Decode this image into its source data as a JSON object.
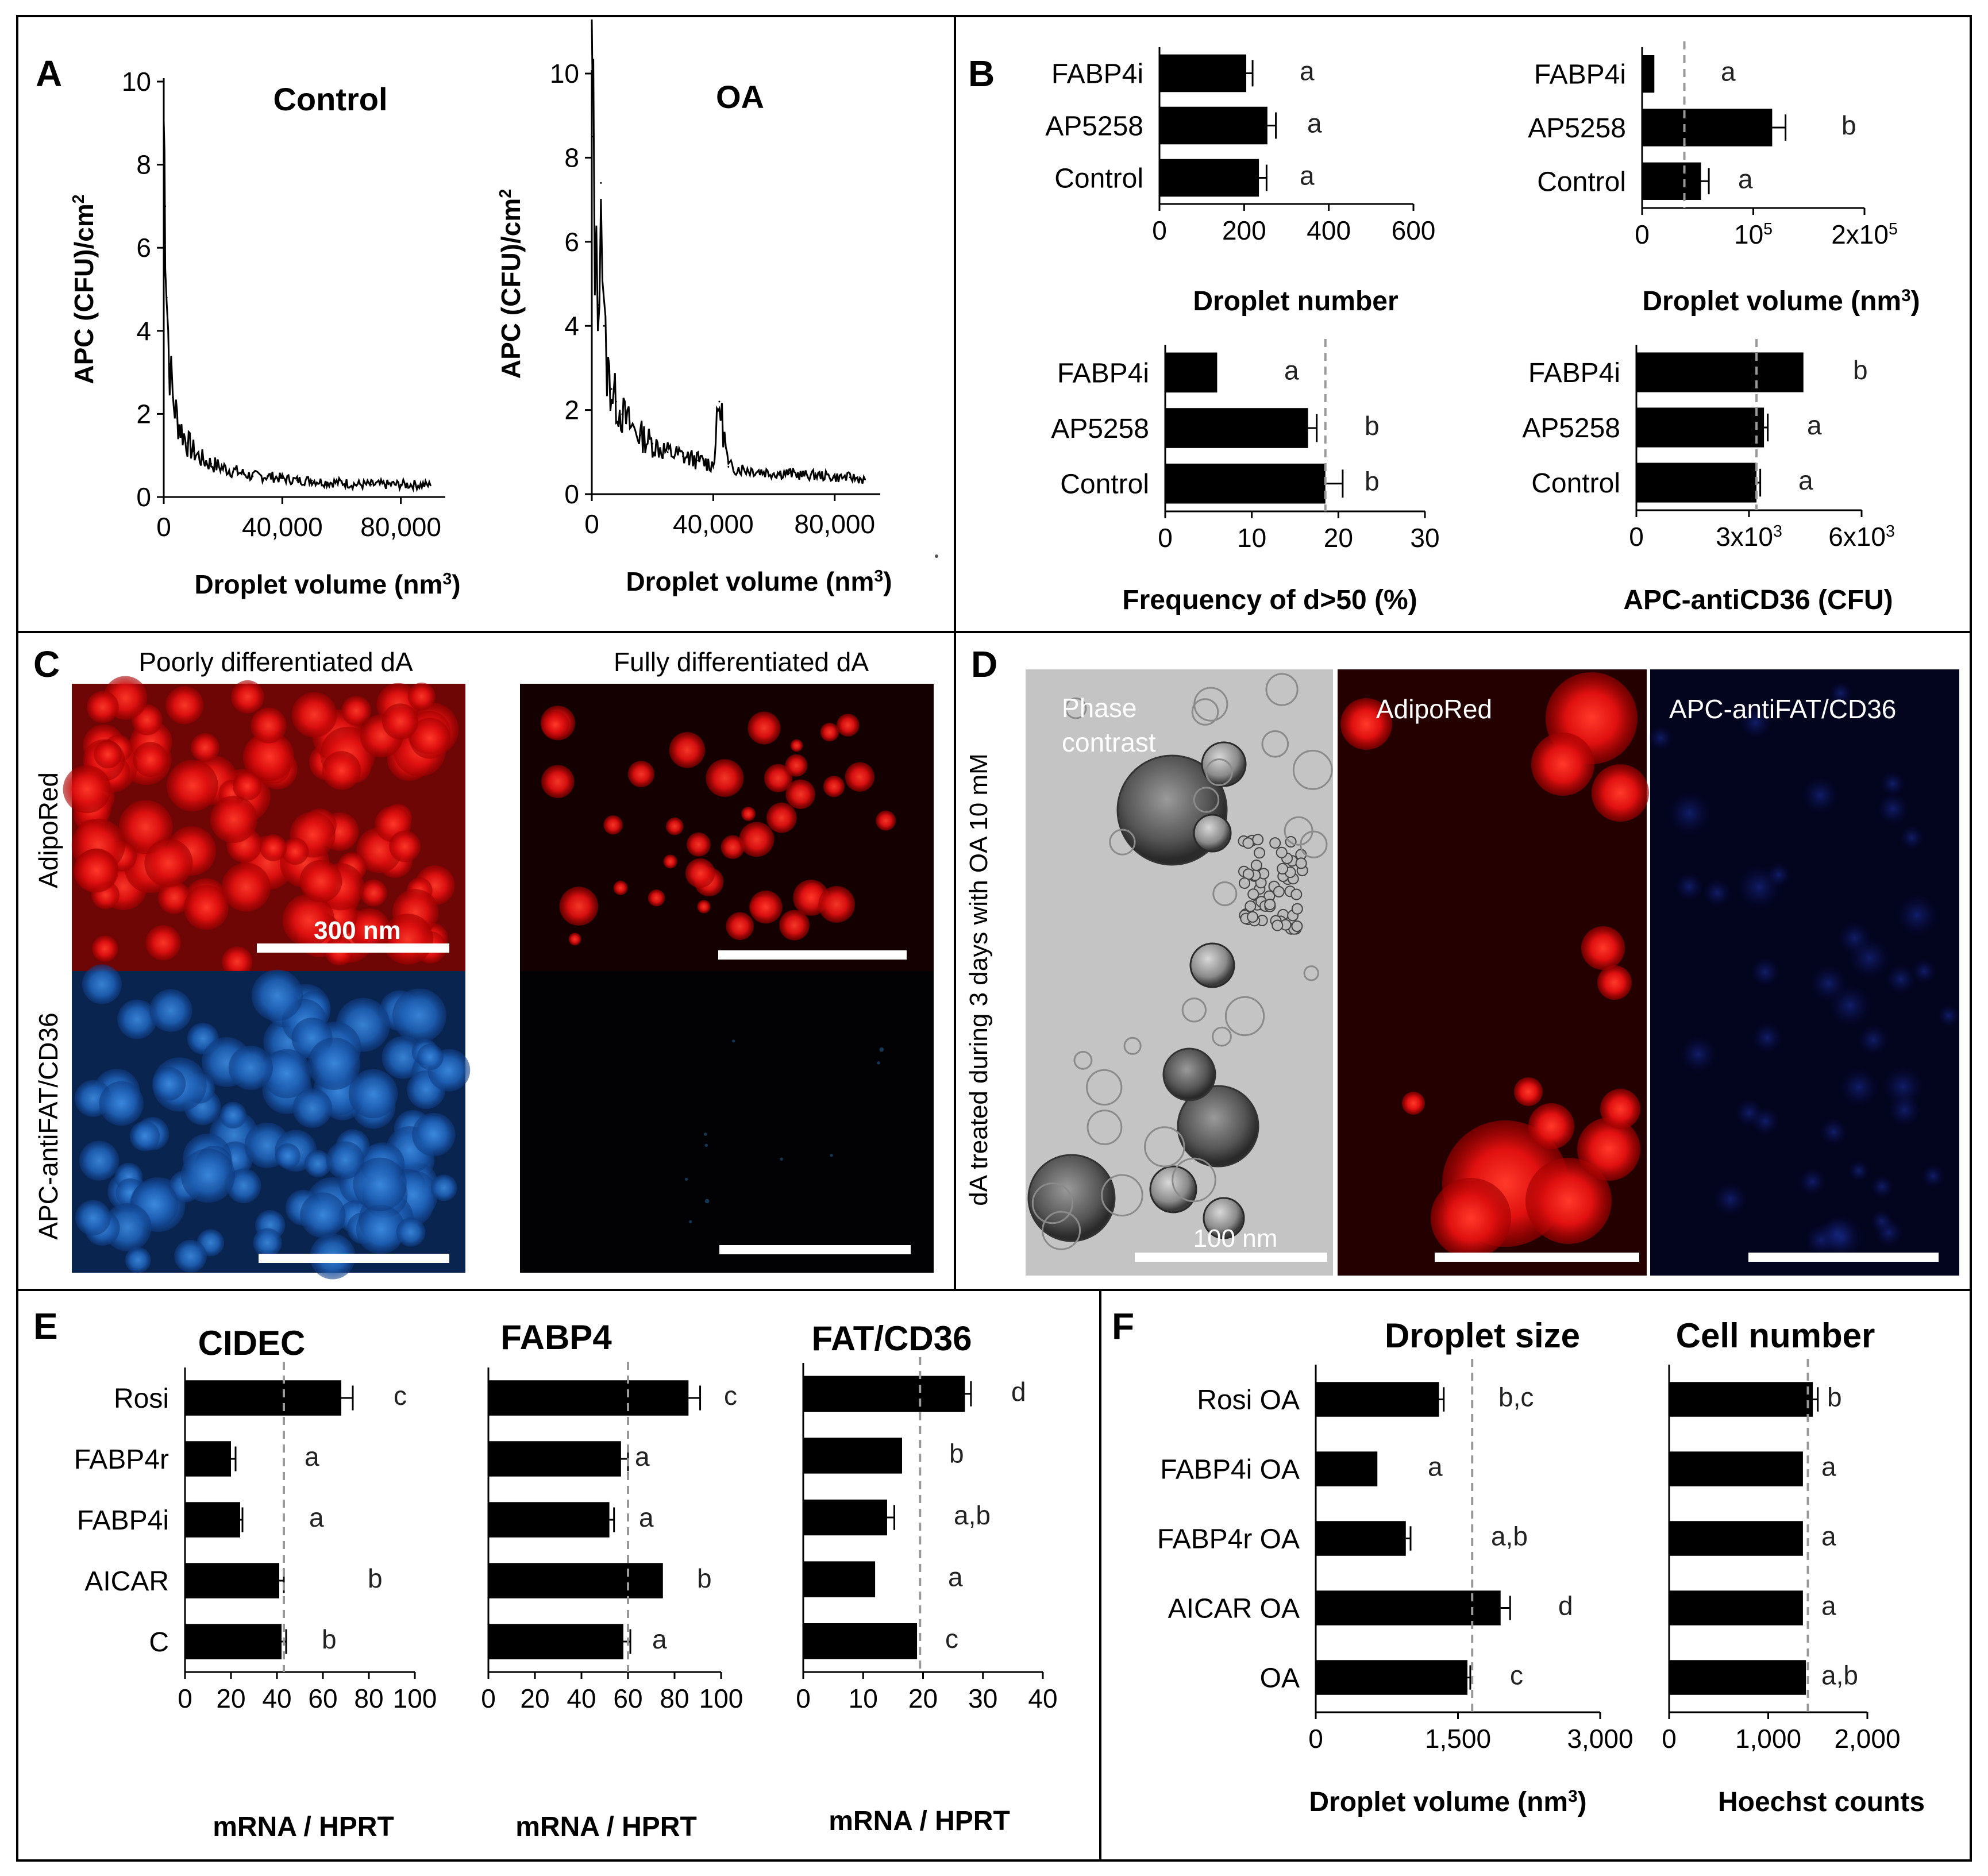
{
  "figure_labels": {
    "A": "A",
    "B": "B",
    "C": "C",
    "D": "D",
    "E": "E",
    "F": "F"
  },
  "colors": {
    "bar": "#000000",
    "dashed_line": "#9a9a9a",
    "frame": "#000000",
    "red_stain": "#d81010",
    "blue_stain": "#1e5fb4"
  },
  "panel_C": {
    "col_titles": [
      "Poorly differentiated dA",
      "Fully differentiated dA"
    ],
    "row_labels": [
      "AdipoRed",
      "APC-antiFAT/CD36"
    ],
    "scale_label": "300 nm"
  },
  "panel_D": {
    "side_label": "dA treated during 3 days with OA 10 mM",
    "image_labels": [
      "Phase\ncontrast",
      "AdipoRed",
      "APC-antiFAT/CD36"
    ],
    "scale_label": "100 nm"
  },
  "chart_data": [
    {
      "id": "A1",
      "type": "line",
      "title": "Control",
      "xlabel": "Droplet volume (nm3)",
      "ylabel": "APC (CFU)/cm2",
      "xlim": [
        0,
        95000
      ],
      "ylim": [
        0,
        10
      ],
      "xticks": [
        0,
        40000,
        80000
      ],
      "xtick_labels": [
        "0",
        "40,000",
        "80,000"
      ],
      "yticks": [
        0,
        2,
        4,
        6,
        8,
        10
      ],
      "ytick_labels": [
        "0",
        "2",
        "4",
        "6",
        "8",
        "10"
      ],
      "series": [
        {
          "x": [
            0,
            500,
            1000,
            2000,
            3000,
            4500,
            6000,
            8000,
            10000,
            13000,
            16000,
            20000,
            25000,
            30000,
            35000,
            40000,
            45000,
            50000,
            55000,
            60000,
            65000,
            70000,
            75000,
            80000,
            85000,
            90000
          ],
          "y": [
            9.1,
            7.0,
            4.8,
            3.2,
            2.4,
            1.9,
            1.6,
            1.3,
            1.1,
            0.9,
            0.8,
            0.7,
            0.6,
            0.5,
            0.5,
            0.45,
            0.4,
            0.4,
            0.35,
            0.35,
            0.3,
            0.3,
            0.3,
            0.3,
            0.3,
            0.28
          ]
        }
      ]
    },
    {
      "id": "A2",
      "type": "line",
      "title": "OA",
      "xlabel": "Droplet volume (nm3)",
      "ylabel": "APC (CFU)/cm2",
      "xlim": [
        0,
        95000
      ],
      "ylim": [
        0,
        10
      ],
      "xticks": [
        0,
        40000,
        80000
      ],
      "xtick_labels": [
        "0",
        "40,000",
        "80,000"
      ],
      "yticks": [
        0,
        2,
        4,
        6,
        8,
        10
      ],
      "ytick_labels": [
        "0",
        "2",
        "4",
        "6",
        "8",
        "10"
      ],
      "series": [
        {
          "x": [
            0,
            500,
            1000,
            2000,
            3000,
            4000,
            5000,
            6500,
            8000,
            10000,
            13000,
            16000,
            20000,
            25000,
            30000,
            35000,
            40000,
            42000,
            45000,
            50000,
            55000,
            60000,
            65000,
            70000,
            75000,
            80000,
            85000,
            90000
          ],
          "y": [
            10.0,
            8.5,
            6.0,
            4.5,
            7.4,
            4.0,
            3.0,
            2.5,
            2.2,
            1.9,
            1.6,
            1.4,
            1.2,
            1.0,
            0.9,
            0.8,
            0.7,
            2.2,
            0.65,
            0.6,
            0.55,
            0.5,
            0.5,
            0.45,
            0.45,
            0.4,
            0.4,
            0.35
          ]
        }
      ]
    },
    {
      "id": "B1",
      "type": "bar",
      "orientation": "horizontal",
      "xlabel": "Droplet number",
      "categories": [
        "FABP4i",
        "AP5258",
        "Control"
      ],
      "values": [
        205,
        255,
        235
      ],
      "errors": [
        15,
        20,
        18
      ],
      "letters": [
        "a",
        "a",
        "a"
      ],
      "xlim": [
        0,
        600
      ],
      "xticks": [
        0,
        200,
        400,
        600
      ],
      "xtick_labels": [
        "0",
        "200",
        "400",
        "600"
      ],
      "ref": null
    },
    {
      "id": "B2",
      "type": "bar",
      "orientation": "horizontal",
      "xlabel": "Droplet volume (nm3)",
      "categories": [
        "FABP4i",
        "AP5258",
        "Control"
      ],
      "values": [
        11000,
        117000,
        53000
      ],
      "errors": [
        0,
        12000,
        7000
      ],
      "letters": [
        "a",
        "b",
        "a"
      ],
      "xlim": [
        0,
        200000
      ],
      "xticks": [
        0,
        100000,
        200000
      ],
      "xtick_labels": [
        "0",
        "10^5",
        "2x10^5"
      ],
      "ref": 38000
    },
    {
      "id": "B3",
      "type": "bar",
      "orientation": "horizontal",
      "xlabel": "Frequency of d>50 (%)",
      "categories": [
        "FABP4i",
        "AP5258",
        "Control"
      ],
      "values": [
        6,
        16.5,
        18.5
      ],
      "errors": [
        0,
        1,
        2
      ],
      "letters": [
        "a",
        "b",
        "b"
      ],
      "xlim": [
        0,
        30
      ],
      "xticks": [
        0,
        10,
        20,
        30
      ],
      "xtick_labels": [
        "0",
        "10",
        "20",
        "30"
      ],
      "ref": 18.5
    },
    {
      "id": "B4",
      "type": "bar",
      "orientation": "horizontal",
      "xlabel": "APC-antiCD36 (CFU)",
      "categories": [
        "FABP4i",
        "AP5258",
        "Control"
      ],
      "values": [
        4450,
        3400,
        3200
      ],
      "errors": [
        0,
        100,
        100
      ],
      "letters": [
        "b",
        "a",
        "a"
      ],
      "xlim": [
        0,
        6000
      ],
      "xticks": [
        0,
        3000,
        6000
      ],
      "xtick_labels": [
        "0",
        "3x10^3",
        "6x10^3"
      ],
      "ref": 3200
    },
    {
      "id": "E1",
      "type": "bar",
      "orientation": "horizontal",
      "title": "CIDEC",
      "xlabel": "mRNA /  HPRT",
      "categories": [
        "Rosi",
        "FABP4r",
        "FABP4i",
        "AICAR",
        "C"
      ],
      "values": [
        68,
        20,
        24,
        41,
        42
      ],
      "errors": [
        5,
        2,
        1,
        2,
        2
      ],
      "letters": [
        "c",
        "a",
        "a",
        "b",
        "b"
      ],
      "xlim": [
        0,
        100
      ],
      "xticks": [
        0,
        20,
        40,
        60,
        80,
        100
      ],
      "xtick_labels": [
        "0",
        "20",
        "40",
        "60",
        "80",
        "100"
      ],
      "ref": 43
    },
    {
      "id": "E2",
      "type": "bar",
      "orientation": "horizontal",
      "title": "FABP4",
      "xlabel": "mRNA /  HPRT",
      "categories": [
        "Rosi",
        "FABP4r",
        "FABP4i",
        "AICAR",
        "C"
      ],
      "values": [
        86,
        57,
        52,
        75,
        58
      ],
      "errors": [
        5,
        3,
        2,
        0,
        3
      ],
      "letters": [
        "c",
        "a",
        "a",
        "b",
        "a"
      ],
      "xlim": [
        0,
        100
      ],
      "xticks": [
        0,
        20,
        40,
        60,
        80,
        100
      ],
      "xtick_labels": [
        "0",
        "20",
        "40",
        "60",
        "80",
        "100"
      ],
      "ref": 60
    },
    {
      "id": "E3",
      "type": "bar",
      "orientation": "horizontal",
      "title": "FAT/CD36",
      "xlabel": "mRNA / HPRT",
      "categories": [
        "Rosi",
        "FABP4r",
        "FABP4i",
        "AICAR",
        "C"
      ],
      "values": [
        27,
        16.5,
        14,
        12,
        19
      ],
      "errors": [
        1,
        0,
        1.2,
        0,
        0
      ],
      "letters": [
        "d",
        "b",
        "a,b",
        "a",
        "c"
      ],
      "xlim": [
        0,
        40
      ],
      "xticks": [
        0,
        10,
        20,
        30,
        40
      ],
      "xtick_labels": [
        "0",
        "10",
        "20",
        "30",
        "40"
      ],
      "ref": 19.5
    },
    {
      "id": "F1",
      "type": "bar",
      "orientation": "horizontal",
      "title": "Droplet size",
      "xlabel": "Droplet volume (nm3)",
      "categories": [
        "Rosi OA",
        "FABP4i OA",
        "FABP4r OA",
        "AICAR OA",
        "OA"
      ],
      "values": [
        1300,
        650,
        950,
        1950,
        1600
      ],
      "errors": [
        50,
        0,
        50,
        100,
        30
      ],
      "letters": [
        "b,c",
        "a",
        "a,b",
        "d",
        "c"
      ],
      "xlim": [
        0,
        3000
      ],
      "xticks": [
        0,
        1500,
        3000
      ],
      "xtick_labels": [
        "0",
        "1,500",
        "3,000"
      ],
      "ref": 1650
    },
    {
      "id": "F2",
      "type": "bar",
      "orientation": "horizontal",
      "title": "Cell number",
      "xlabel": "Hoechst counts",
      "categories": [
        "Rosi OA",
        "FABP4i OA",
        "FABP4r OA",
        "AICAR OA",
        "OA"
      ],
      "values": [
        1450,
        1350,
        1350,
        1350,
        1380
      ],
      "errors": [
        50,
        0,
        0,
        0,
        0
      ],
      "letters": [
        "b",
        "a",
        "a",
        "a",
        "a,b"
      ],
      "xlim": [
        0,
        2000
      ],
      "xticks": [
        0,
        1000,
        2000
      ],
      "xtick_labels": [
        "0",
        "1,000",
        "2,000"
      ],
      "ref": 1400
    }
  ]
}
